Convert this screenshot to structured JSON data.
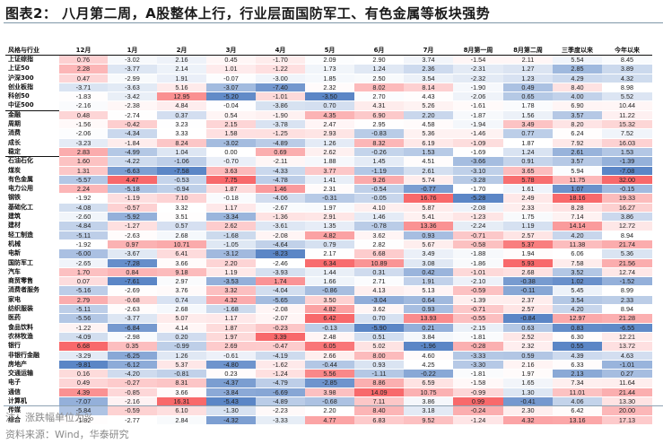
{
  "title": "图表2：  八月第二周，A股整体上行，行业层面国防军工、有色金属等板块强势",
  "table": {
    "row_header": "风格与行业",
    "columns": [
      "12月",
      "1月",
      "2月",
      "3月",
      "4月",
      "5月",
      "6月",
      "7月",
      "8月第一周",
      "8月第二周",
      "三季度以来",
      "今年以来"
    ],
    "rows": [
      {
        "label": "上证综指",
        "values": [
          "0.76",
          "-3.02",
          "2.16",
          "0.45",
          "-1.70",
          "2.09",
          "2.90",
          "3.74",
          "-1.54",
          "2.11",
          "5.54",
          "8.45"
        ]
      },
      {
        "label": "上证50",
        "values": [
          "2.28",
          "-3.77",
          "2.14",
          "1.01",
          "-1.22",
          "1.73",
          "1.24",
          "2.36",
          "-2.31",
          "1.27",
          "2.85",
          "3.89"
        ]
      },
      {
        "label": "沪深300",
        "values": [
          "0.47",
          "-2.99",
          "1.91",
          "-0.07",
          "-3.00",
          "1.85",
          "2.50",
          "3.54",
          "-2.32",
          "1.23",
          "4.29",
          "4.32"
        ]
      },
      {
        "label": "创业板指",
        "values": [
          "-3.71",
          "-3.63",
          "5.16",
          "-3.07",
          "-7.40",
          "2.32",
          "8.02",
          "8.14",
          "-1.90",
          "0.49",
          "8.40",
          "8.98"
        ]
      },
      {
        "label": "科创50",
        "values": [
          "-1.83",
          "-3.42",
          "12.95",
          "-5.20",
          "-1.01",
          "-3.50",
          "2.70",
          "4.43",
          "-2.06",
          "0.65",
          "4.00",
          "5.52"
        ]
      },
      {
        "label": "中证500",
        "values": [
          "-2.16",
          "-2.38",
          "4.84",
          "-0.04",
          "-3.86",
          "0.70",
          "4.31",
          "5.26",
          "-1.61",
          "1.78",
          "6.90",
          "10.44"
        ],
        "sep": true
      },
      {
        "label": "金融",
        "values": [
          "0.48",
          "-2.74",
          "0.37",
          "0.54",
          "-1.90",
          "4.35",
          "6.90",
          "2.20",
          "-1.87",
          "1.56",
          "3.57",
          "11.22"
        ]
      },
      {
        "label": "周期",
        "values": [
          "-1.56",
          "-0.42",
          "3.23",
          "2.15",
          "-3.78",
          "2.47",
          "2.95",
          "4.58",
          "-1.94",
          "3.49",
          "8.20",
          "15.32"
        ]
      },
      {
        "label": "消费",
        "values": [
          "-2.06",
          "-4.34",
          "3.33",
          "1.58",
          "-1.25",
          "2.93",
          "-0.83",
          "5.36",
          "-1.46",
          "0.77",
          "6.24",
          "7.52"
        ]
      },
      {
        "label": "成长",
        "values": [
          "-3.23",
          "-1.84",
          "8.24",
          "-3.02",
          "-4.89",
          "1.26",
          "8.32",
          "6.19",
          "-1.09",
          "1.87",
          "7.92",
          "16.03"
        ]
      },
      {
        "label": "稳定",
        "values": [
          "2.83",
          "-4.99",
          "1.04",
          "0.00",
          "0.69",
          "2.62",
          "-0.26",
          "1.53",
          "-1.69",
          "1.24",
          "2.61",
          "1.53"
        ],
        "sep": true
      },
      {
        "label": "石油石化",
        "values": [
          "1.60",
          "-4.22",
          "-1.06",
          "-0.70",
          "-2.11",
          "1.88",
          "1.45",
          "4.51",
          "-3.66",
          "0.91",
          "3.57",
          "-1.39"
        ]
      },
      {
        "label": "煤炭",
        "values": [
          "1.31",
          "-6.63",
          "-7.58",
          "3.63",
          "-4.33",
          "3.77",
          "-1.19",
          "2.61",
          "-3.10",
          "3.65",
          "5.94",
          "-7.08"
        ]
      },
      {
        "label": "有色金属",
        "values": [
          "-5.57",
          "4.47",
          "-0.53",
          "7.75",
          "-4.78",
          "1.41",
          "9.26",
          "5.74",
          "-3.28",
          "5.78",
          "11.75",
          "32.00"
        ]
      },
      {
        "label": "电力公用",
        "values": [
          "2.24",
          "-5.18",
          "-0.94",
          "1.87",
          "1.46",
          "2.31",
          "-0.54",
          "-0.77",
          "-1.70",
          "1.61",
          "1.07",
          "-0.15"
        ]
      },
      {
        "label": "钢铁",
        "values": [
          "-1.92",
          "-1.19",
          "7.10",
          "-0.18",
          "-4.06",
          "-0.31",
          "-0.05",
          "16.76",
          "-5.28",
          "2.49",
          "18.16",
          "19.33"
        ]
      },
      {
        "label": "基础化工",
        "values": [
          "-4.08",
          "-0.57",
          "3.32",
          "1.17",
          "-2.67",
          "1.97",
          "4.10",
          "5.87",
          "-2.08",
          "2.33",
          "8.28",
          "16.27"
        ]
      },
      {
        "label": "建筑",
        "values": [
          "-2.60",
          "-5.92",
          "3.51",
          "-3.34",
          "-1.36",
          "2.91",
          "1.46",
          "5.41",
          "-1.23",
          "1.75",
          "7.14",
          "3.86"
        ]
      },
      {
        "label": "建材",
        "values": [
          "-4.84",
          "-1.27",
          "0.57",
          "2.62",
          "-3.61",
          "1.35",
          "-0.78",
          "13.36",
          "-2.24",
          "1.19",
          "14.14",
          "12.72"
        ]
      },
      {
        "label": "轻工制造",
        "values": [
          "-5.11",
          "-2.63",
          "2.68",
          "-1.68",
          "-2.08",
          "4.82",
          "3.62",
          "0.93",
          "-0.71",
          "2.57",
          "4.20",
          "8.94"
        ]
      },
      {
        "label": "机械",
        "values": [
          "-1.92",
          "0.97",
          "10.71",
          "-1.05",
          "-4.64",
          "0.79",
          "2.82",
          "5.67",
          "-0.58",
          "5.37",
          "11.38",
          "21.74"
        ]
      },
      {
        "label": "电新",
        "values": [
          "-6.00",
          "-3.67",
          "6.41",
          "-3.12",
          "-8.23",
          "2.17",
          "6.68",
          "3.49",
          "-1.88",
          "1.94",
          "6.06",
          "5.36"
        ]
      },
      {
        "label": "国防军工",
        "values": [
          "-2.65",
          "-7.28",
          "3.66",
          "2.20",
          "-2.46",
          "6.34",
          "10.89",
          "3.08",
          "-1.86",
          "5.93",
          "7.58",
          "21.56"
        ]
      },
      {
        "label": "汽车",
        "values": [
          "1.70",
          "0.84",
          "9.18",
          "1.19",
          "-3.93",
          "1.44",
          "0.31",
          "0.42",
          "-1.01",
          "2.68",
          "3.52",
          "12.74"
        ]
      },
      {
        "label": "商贸零售",
        "values": [
          "0.07",
          "-7.61",
          "2.97",
          "-3.53",
          "1.74",
          "1.66",
          "2.71",
          "1.91",
          "-2.10",
          "-0.38",
          "1.02",
          "-1.52"
        ]
      },
      {
        "label": "消费者服务",
        "values": [
          "-5.16",
          "-2.69",
          "3.76",
          "3.32",
          "-4.04",
          "-0.86",
          "4.13",
          "5.13",
          "-0.59",
          "-0.11",
          "5.45",
          "8.99"
        ]
      },
      {
        "label": "家电",
        "values": [
          "2.79",
          "-0.68",
          "0.74",
          "4.32",
          "-5.65",
          "3.50",
          "-3.04",
          "0.64",
          "-1.39",
          "2.37",
          "3.54",
          "2.33"
        ]
      },
      {
        "label": "纺织服装",
        "values": [
          "-5.11",
          "-2.63",
          "2.68",
          "-1.68",
          "-2.08",
          "4.82",
          "3.62",
          "0.93",
          "-0.71",
          "2.57",
          "4.20",
          "8.94"
        ]
      },
      {
        "label": "医药",
        "values": [
          "-5.56",
          "-3.77",
          "5.07",
          "1.17",
          "-2.07",
          "6.42",
          "0.70",
          "13.93",
          "-0.55",
          "-0.84",
          "12.97",
          "21.28"
        ]
      },
      {
        "label": "食品饮料",
        "values": [
          "-1.22",
          "-6.84",
          "4.14",
          "1.87",
          "-0.23",
          "-0.13",
          "-5.90",
          "0.21",
          "-2.15",
          "0.63",
          "0.83",
          "-6.55"
        ]
      },
      {
        "label": "农林牧渔",
        "values": [
          "-4.09",
          "-2.98",
          "0.20",
          "1.97",
          "3.39",
          "2.48",
          "0.51",
          "3.84",
          "-1.81",
          "2.52",
          "6.30",
          "12.21"
        ]
      },
      {
        "label": "银行",
        "values": [
          "6.68",
          "0.35",
          "-0.99",
          "2.69",
          "-0.47",
          "6.05",
          "5.02",
          "-1.96",
          "-0.28",
          "2.32",
          "0.55",
          "13.72"
        ]
      },
      {
        "label": "非银行金融",
        "values": [
          "-3.29",
          "-6.25",
          "1.26",
          "-0.61",
          "-4.19",
          "2.66",
          "8.00",
          "4.60",
          "-3.33",
          "0.59",
          "4.39",
          "4.63"
        ]
      },
      {
        "label": "房地产",
        "values": [
          "-9.81",
          "-6.12",
          "5.37",
          "-4.80",
          "-1.62",
          "-0.44",
          "0.93",
          "4.25",
          "-3.30",
          "2.16",
          "6.33",
          "-1.01"
        ]
      },
      {
        "label": "交通运输",
        "values": [
          "0.16",
          "-4.20",
          "-0.81",
          "0.23",
          "-1.24",
          "5.56",
          "-1.11",
          "-0.22",
          "-1.81",
          "1.97",
          "2.13",
          "0.27"
        ]
      },
      {
        "label": "电子",
        "values": [
          "0.49",
          "-0.27",
          "8.31",
          "-4.37",
          "-4.79",
          "-2.85",
          "8.86",
          "6.59",
          "-1.58",
          "1.65",
          "7.34",
          "11.64"
        ]
      },
      {
        "label": "通信",
        "values": [
          "4.39",
          "-0.85",
          "3.66",
          "-3.84",
          "-6.69",
          "3.98",
          "14.09",
          "10.75",
          "-0.99",
          "1.30",
          "11.01",
          "21.44"
        ]
      },
      {
        "label": "计算机",
        "values": [
          "-7.07",
          "-2.16",
          "16.31",
          "-5.43",
          "-4.89",
          "-0.68",
          "7.11",
          "3.86",
          "0.99",
          "-0.41",
          "4.06",
          "13.30"
        ]
      },
      {
        "label": "传媒",
        "values": [
          "-5.84",
          "-0.59",
          "6.10",
          "-1.30",
          "-2.23",
          "2.20",
          "8.40",
          "3.18",
          "-0.24",
          "2.30",
          "6.42",
          "20.00"
        ]
      },
      {
        "label": "综合",
        "values": [
          "-1.82",
          "-2.77",
          "2.84",
          "-4.32",
          "-3.33",
          "4.77",
          "6.83",
          "9.52",
          "-1.24",
          "4.32",
          "13.16",
          "17.13"
        ]
      }
    ]
  },
  "colors": {
    "negative_max": "#5b86c6",
    "neutral": "#ffffff",
    "positive_max": "#f8696b"
  },
  "footer": {
    "note": "注：涨跌幅单位为%",
    "source": "资料来源：Wind，华泰研究"
  }
}
